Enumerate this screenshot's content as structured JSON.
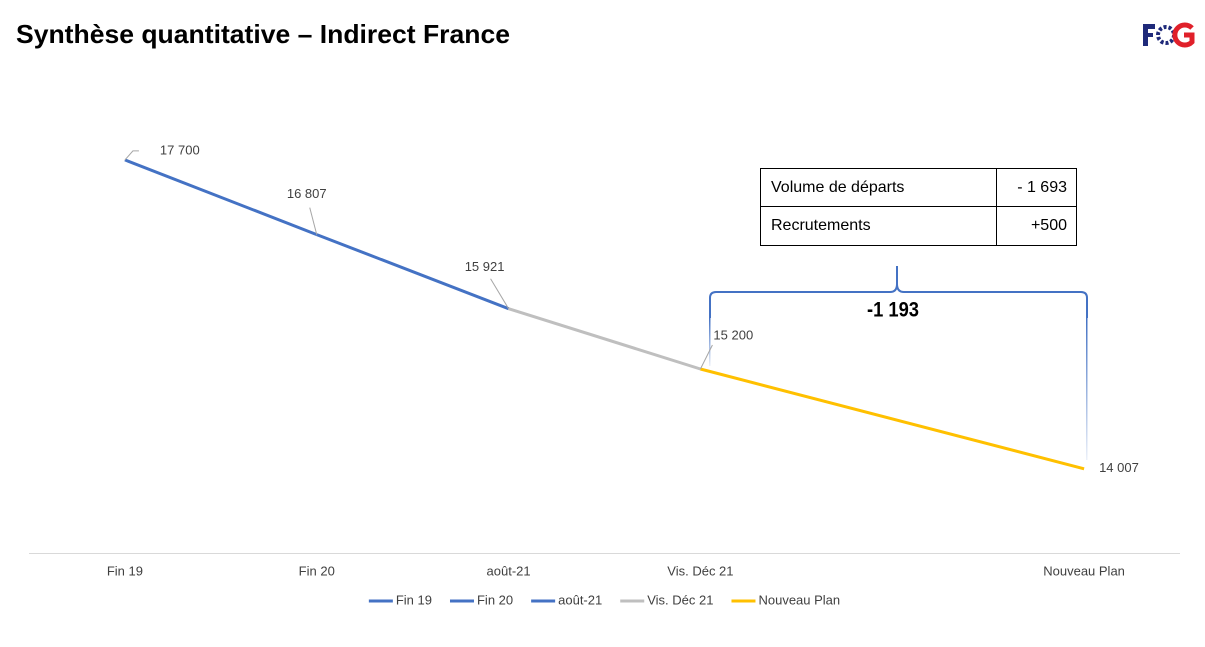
{
  "title": "Synthèse quantitative – Indirect France",
  "table": {
    "rows": [
      [
        "Volume de départs",
        "- 1 693"
      ],
      [
        "Recrutements",
        "+500"
      ]
    ]
  },
  "chart_data": {
    "type": "line",
    "annotation": "-1 193",
    "x": [
      0,
      1,
      2,
      3,
      5
    ],
    "xlim": [
      -0.5,
      5.5
    ],
    "xticks": [
      {
        "value": 0,
        "label": "Fin 19"
      },
      {
        "value": 1,
        "label": "Fin 20"
      },
      {
        "value": 2,
        "label": "août-21"
      },
      {
        "value": 3,
        "label": "Vis. Déc 21"
      },
      {
        "value": 5,
        "label": "Nouveau Plan"
      }
    ],
    "ylim": [
      13000,
      18500
    ],
    "series": [
      {
        "name": "Fin 19",
        "color": "#4472c4",
        "values": [
          17700,
          16807,
          null,
          null,
          null
        ],
        "value_labels": [
          "17 700",
          "16 807",
          null,
          null,
          null
        ]
      },
      {
        "name": "Fin 20",
        "color": "#4472c4",
        "values": [
          null,
          16807,
          15921,
          null,
          null
        ],
        "value_labels": [
          null,
          null,
          "15 921",
          null,
          null
        ]
      },
      {
        "name": "août-21",
        "color": "#4472c4",
        "values": [
          null,
          null,
          15921,
          null,
          null
        ]
      },
      {
        "name": "Vis. Déc 21",
        "color": "#bfbfbf",
        "values": [
          null,
          null,
          15921,
          15200,
          null
        ],
        "value_labels": [
          null,
          null,
          null,
          "15 200",
          null
        ]
      },
      {
        "name": "Nouveau Plan",
        "color": "#ffc000",
        "values": [
          null,
          null,
          null,
          15200,
          14007
        ],
        "value_labels": [
          null,
          null,
          null,
          null,
          "14 007"
        ]
      }
    ]
  }
}
